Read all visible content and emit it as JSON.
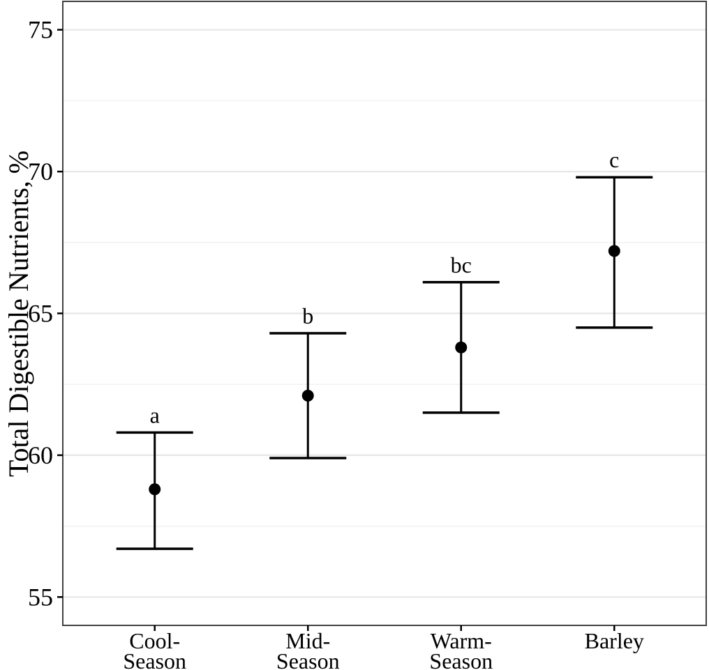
{
  "figure": {
    "background_color": "#ffffff"
  },
  "chart_data": {
    "type": "scatter",
    "subtype": "point-estimates-with-error-bars",
    "title": "",
    "xlabel": "",
    "ylabel": "Total Digestible Nutrients, %",
    "categories": [
      "Cool-Season",
      "Mid-Season",
      "Warm-Season",
      "Barley"
    ],
    "category_label_lines": [
      [
        "Cool-",
        "Season"
      ],
      [
        "Mid-",
        "Season"
      ],
      [
        "Warm-",
        "Season"
      ],
      [
        "Barley"
      ]
    ],
    "series": [
      {
        "name": "Total Digestible Nutrients",
        "means": [
          58.8,
          62.1,
          63.8,
          67.2
        ],
        "upper": [
          60.8,
          64.3,
          66.1,
          69.8
        ],
        "lower": [
          56.7,
          59.9,
          61.5,
          64.5
        ],
        "significance_letters": [
          "a",
          "b",
          "bc",
          "c"
        ]
      }
    ],
    "ylim": [
      54,
      76
    ],
    "yticks_major": [
      55,
      60,
      65,
      70,
      75
    ],
    "yticks_minor": [
      57.5,
      62.5,
      67.5,
      72.5
    ],
    "grid": "horizontal-only",
    "legend": "none",
    "colors": {
      "point": "#000000",
      "error_bar": "#000000",
      "text": "#000000",
      "grid_major": "#e7e7e7",
      "grid_minor": "#f2f2f2",
      "panel_border": "#404040",
      "tick_mark": "#000000",
      "background": "#ffffff"
    }
  }
}
